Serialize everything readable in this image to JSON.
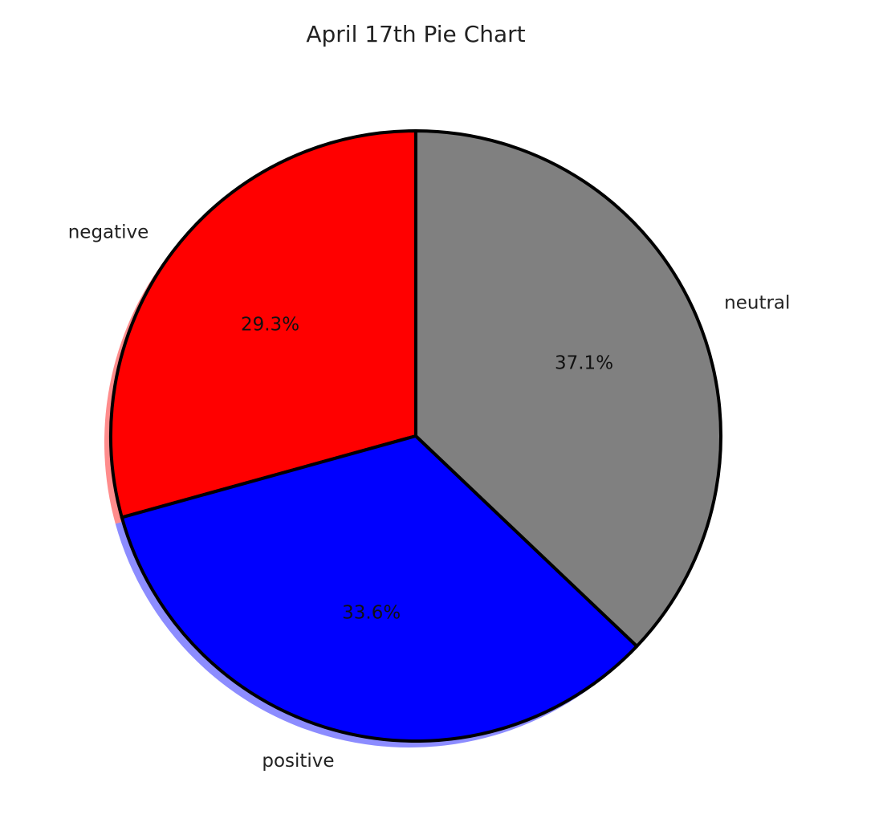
{
  "chart_data": {
    "type": "pie",
    "title": "April 17th Pie Chart",
    "start_angle_deg": 90,
    "direction": "counterclockwise",
    "shadow": true,
    "edge_color": "#000000",
    "slices": [
      {
        "label": "negative",
        "value": 29.3,
        "pct_label": "29.3%",
        "color": "#ff0000"
      },
      {
        "label": "positive",
        "value": 33.6,
        "pct_label": "33.6%",
        "color": "#0000ff"
      },
      {
        "label": "neutral",
        "value": 37.1,
        "pct_label": "37.1%",
        "color": "#808080"
      }
    ]
  }
}
